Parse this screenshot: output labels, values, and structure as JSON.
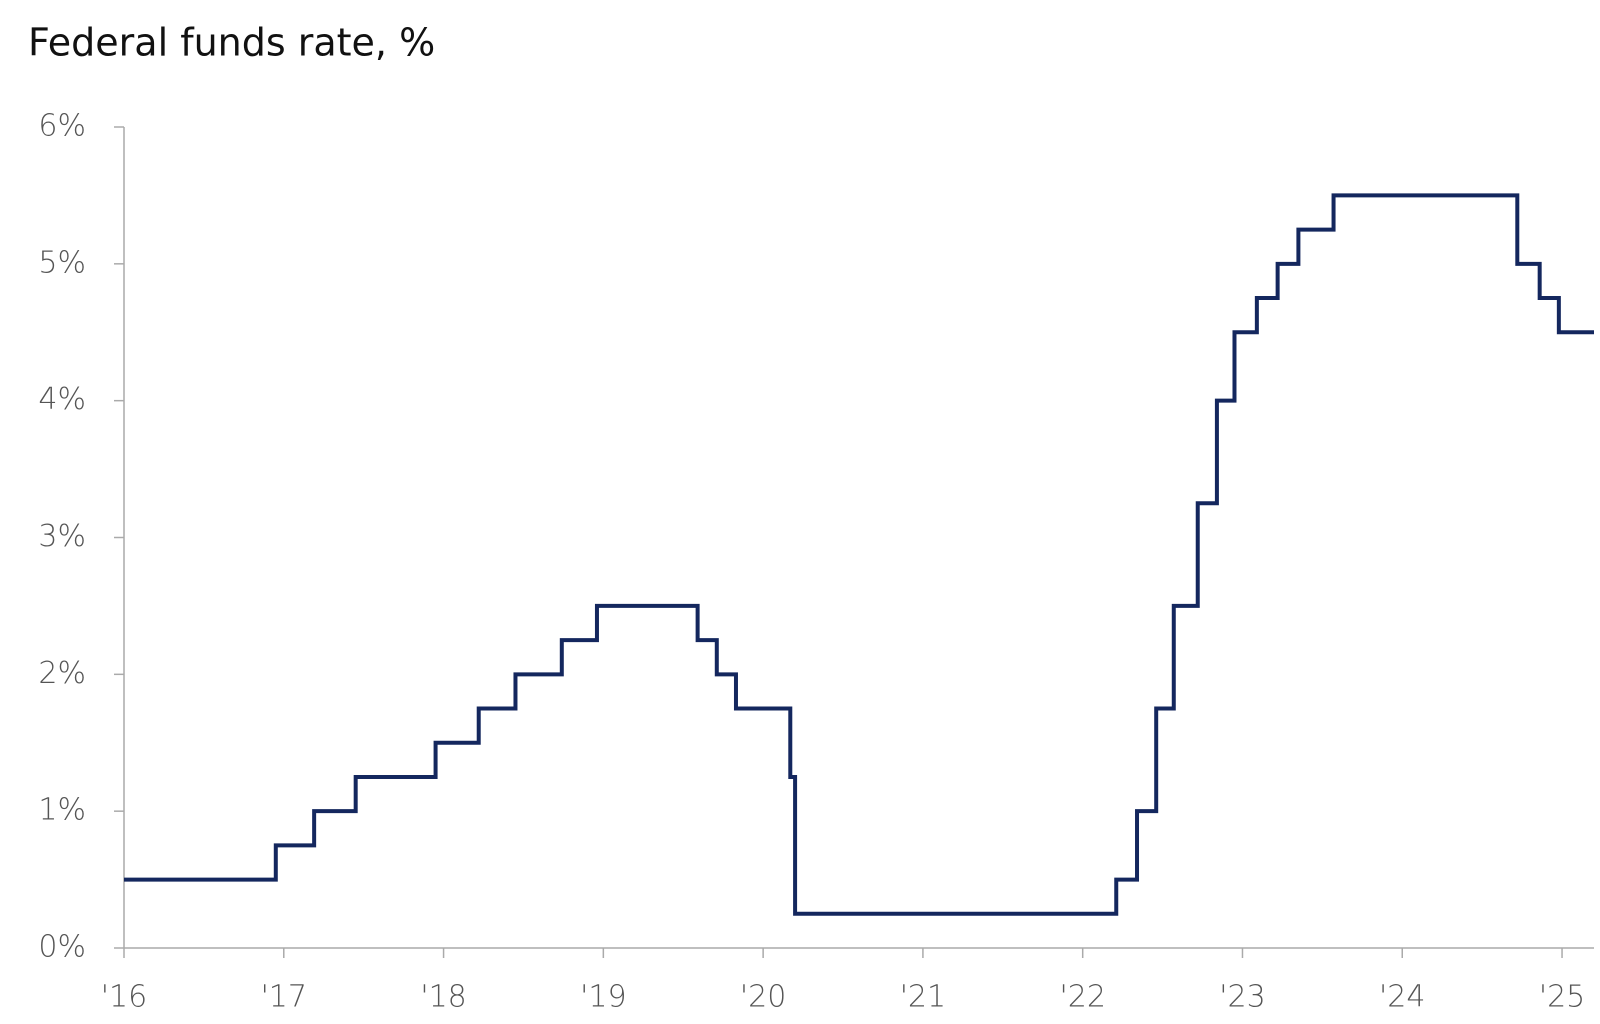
{
  "chart_data": {
    "type": "line",
    "title": "Federal funds rate, %",
    "x": [
      2016,
      2016.95,
      2016.95,
      2017.19,
      2017.19,
      2017.45,
      2017.45,
      2017.95,
      2017.95,
      2018.22,
      2018.22,
      2018.45,
      2018.45,
      2018.74,
      2018.74,
      2018.96,
      2018.96,
      2019.59,
      2019.59,
      2019.71,
      2019.71,
      2019.83,
      2019.83,
      2020.17,
      2020.17,
      2020.2,
      2020.2,
      2022.21,
      2022.21,
      2022.34,
      2022.34,
      2022.46,
      2022.46,
      2022.57,
      2022.57,
      2022.72,
      2022.72,
      2022.84,
      2022.84,
      2022.95,
      2022.95,
      2023.09,
      2023.09,
      2023.22,
      2023.22,
      2023.35,
      2023.35,
      2023.57,
      2023.57,
      2024.72,
      2024.72,
      2024.86,
      2024.86,
      2024.98,
      2024.98,
      2025.2
    ],
    "values": [
      0.5,
      0.5,
      0.75,
      0.75,
      1,
      1,
      1.25,
      1.25,
      1.5,
      1.5,
      1.75,
      1.75,
      2,
      2,
      2.25,
      2.25,
      2.5,
      2.5,
      2.25,
      2.25,
      2,
      2,
      1.75,
      1.75,
      1.25,
      1.25,
      0.25,
      0.25,
      0.5,
      0.5,
      1,
      1,
      1.75,
      1.75,
      2.5,
      2.5,
      3.25,
      3.25,
      4,
      4,
      4.5,
      4.5,
      4.75,
      4.75,
      5,
      5,
      5.25,
      5.25,
      5.5,
      5.5,
      5,
      5,
      4.75,
      4.75,
      4.5,
      4.5
    ],
    "color": "#14275e",
    "xlim": [
      2016,
      2025.2
    ],
    "xticks": [
      {
        "value": 2016,
        "label": "'16"
      },
      {
        "value": 2017,
        "label": "'17"
      },
      {
        "value": 2018,
        "label": "'18"
      },
      {
        "value": 2019,
        "label": "'19"
      },
      {
        "value": 2020,
        "label": "'20"
      },
      {
        "value": 2021,
        "label": "'21"
      },
      {
        "value": 2022,
        "label": "'22"
      },
      {
        "value": 2023,
        "label": "'23"
      },
      {
        "value": 2024,
        "label": "'24"
      },
      {
        "value": 2025,
        "label": "'25"
      }
    ],
    "ylim": [
      0,
      6
    ],
    "yticks": [
      {
        "value": 0,
        "label": "0%"
      },
      {
        "value": 1,
        "label": "1%"
      },
      {
        "value": 2,
        "label": "2%"
      },
      {
        "value": 3,
        "label": "3%"
      },
      {
        "value": 4,
        "label": "4%"
      },
      {
        "value": 5,
        "label": "5%"
      },
      {
        "value": 6,
        "label": "6%"
      }
    ],
    "grid": false
  }
}
